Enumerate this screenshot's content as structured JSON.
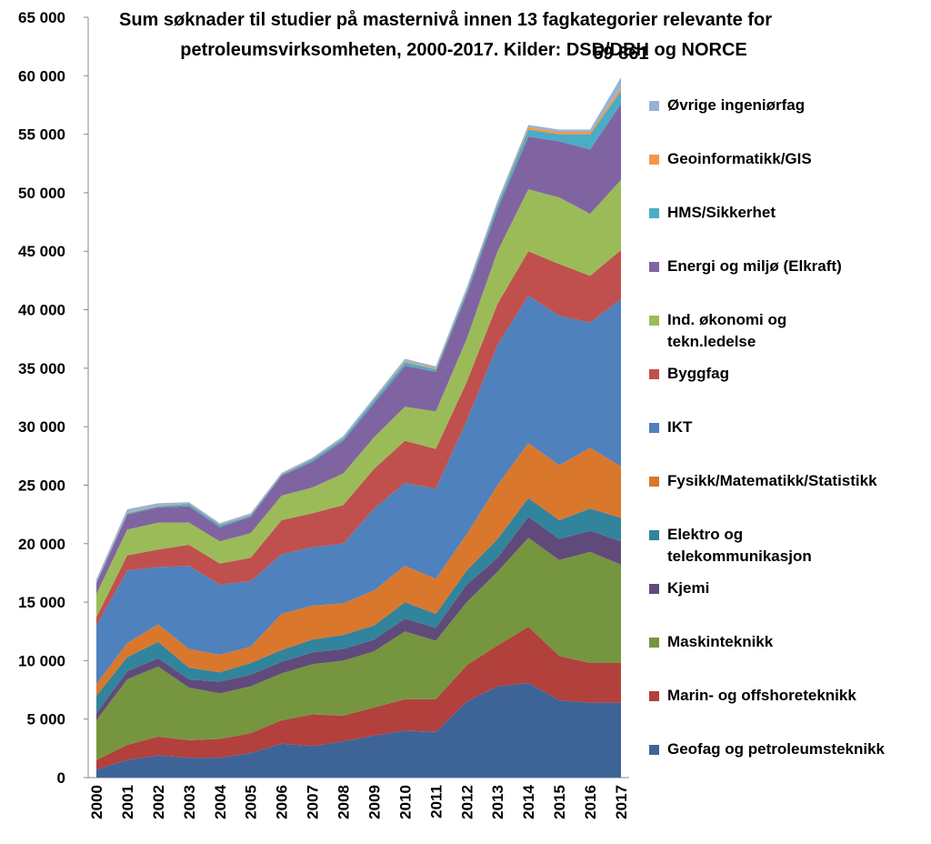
{
  "chart_data": {
    "type": "stacked-area",
    "title": [
      "Sum søknader til studier på masternivå innen 13 fagkategorier relevante for",
      "petroleumsvirksomheten, 2000-2017. Kilder: DSD/DBH og NORCE"
    ],
    "annotation": "59 861",
    "categories": [
      "2000",
      "2001",
      "2002",
      "2003",
      "2004",
      "2005",
      "2006",
      "2007",
      "2008",
      "2009",
      "2010",
      "2011",
      "2012",
      "2013",
      "2014",
      "2015",
      "2016",
      "2017"
    ],
    "ylim": [
      0,
      65000
    ],
    "yticks": [
      0,
      {
        "value": 5000,
        "label": "5 000"
      },
      {
        "value": 10000,
        "label": "10 000"
      },
      {
        "value": 15000,
        "label": "15 000"
      },
      {
        "value": 20000,
        "label": "20 000"
      },
      {
        "value": 25000,
        "label": "25 000"
      },
      {
        "value": 30000,
        "label": "30 000"
      },
      {
        "value": 35000,
        "label": "35 000"
      },
      {
        "value": 40000,
        "label": "40 000"
      },
      {
        "value": 45000,
        "label": "45 000"
      },
      {
        "value": 50000,
        "label": "50 000"
      },
      {
        "value": 55000,
        "label": "55 000"
      },
      {
        "value": 60000,
        "label": "60 000"
      },
      {
        "value": 65000,
        "label": "65 000"
      }
    ],
    "series": [
      {
        "name": "Geofag og petroleumsteknikk",
        "color": "#3e6497",
        "values": [
          700,
          1500,
          1900,
          1700,
          1700,
          2100,
          2900,
          2700,
          3100,
          3600,
          4000,
          3900,
          6500,
          7800,
          8100,
          6600,
          6400,
          6400
        ]
      },
      {
        "name": "Marin- og offshoreteknikk",
        "color": "#b2403d",
        "values": [
          800,
          1300,
          1600,
          1500,
          1600,
          1700,
          2000,
          2700,
          2200,
          2400,
          2700,
          2800,
          3100,
          3500,
          4800,
          3800,
          3400,
          3400
        ]
      },
      {
        "name": "Maskinteknikk",
        "color": "#76953f",
        "values": [
          3400,
          5600,
          6000,
          4500,
          3900,
          4000,
          4000,
          4300,
          4700,
          4800,
          5800,
          5000,
          5400,
          6300,
          7600,
          8200,
          9500,
          8400
        ]
      },
      {
        "name": "Kjemi",
        "color": "#604a7b",
        "values": [
          600,
          700,
          700,
          700,
          1000,
          1000,
          1000,
          1000,
          1000,
          1000,
          1100,
          1100,
          1500,
          1200,
          1800,
          1800,
          1800,
          2000
        ]
      },
      {
        "name": "Elektro og telekommunikasjon",
        "color": "#31849b",
        "values": [
          1500,
          1200,
          1400,
          1000,
          800,
          1000,
          1000,
          1100,
          1200,
          1200,
          1400,
          1200,
          1200,
          1600,
          1600,
          1600,
          1900,
          2000
        ]
      },
      {
        "name": "Fysikk/Matematikk/Statistikk",
        "color": "#d9772d",
        "values": [
          1000,
          1200,
          1500,
          1600,
          1500,
          1400,
          3100,
          2900,
          2700,
          3000,
          3100,
          3000,
          3100,
          4600,
          4700,
          4700,
          5200,
          4400
        ]
      },
      {
        "name": "IKT",
        "color": "#4f81bd",
        "values": [
          5000,
          6200,
          4900,
          7100,
          6000,
          5600,
          5100,
          5000,
          5100,
          7000,
          7100,
          7700,
          9700,
          12000,
          12600,
          12800,
          10700,
          14300
        ]
      },
      {
        "name": "Byggfag",
        "color": "#c0504d",
        "values": [
          700,
          1300,
          1500,
          1800,
          1800,
          2000,
          2900,
          2900,
          3300,
          3400,
          3600,
          3400,
          3300,
          3500,
          3800,
          4400,
          4000,
          4200
        ]
      },
      {
        "name": "Ind. økonomi og tekn.ledelse",
        "color": "#9bbb59",
        "values": [
          2000,
          2200,
          2300,
          1900,
          1900,
          2100,
          2100,
          2200,
          2700,
          2700,
          2900,
          3200,
          3700,
          4500,
          5300,
          5700,
          5300,
          6000
        ]
      },
      {
        "name": "Energi og miljø (Elkraft)",
        "color": "#8064a2",
        "values": [
          900,
          1300,
          1300,
          1400,
          1200,
          1400,
          1700,
          2200,
          2800,
          2900,
          3500,
          3400,
          3800,
          3600,
          4500,
          4800,
          5500,
          6500
        ]
      },
      {
        "name": "HMS/Sikkerhet",
        "color": "#4bacc6",
        "values": [
          100,
          100,
          100,
          200,
          200,
          100,
          100,
          200,
          200,
          300,
          300,
          200,
          300,
          400,
          600,
          600,
          1300,
          1100
        ]
      },
      {
        "name": "Geoinformatikk/GIS",
        "color": "#f79646",
        "values": [
          50,
          50,
          50,
          50,
          50,
          50,
          50,
          50,
          50,
          50,
          100,
          100,
          100,
          100,
          200,
          200,
          200,
          300
        ]
      },
      {
        "name": "Øvrige ingeniørfag",
        "color": "#95b3d7",
        "values": [
          200,
          300,
          200,
          100,
          100,
          150,
          100,
          100,
          150,
          150,
          200,
          150,
          200,
          200,
          200,
          200,
          200,
          861
        ]
      }
    ]
  }
}
